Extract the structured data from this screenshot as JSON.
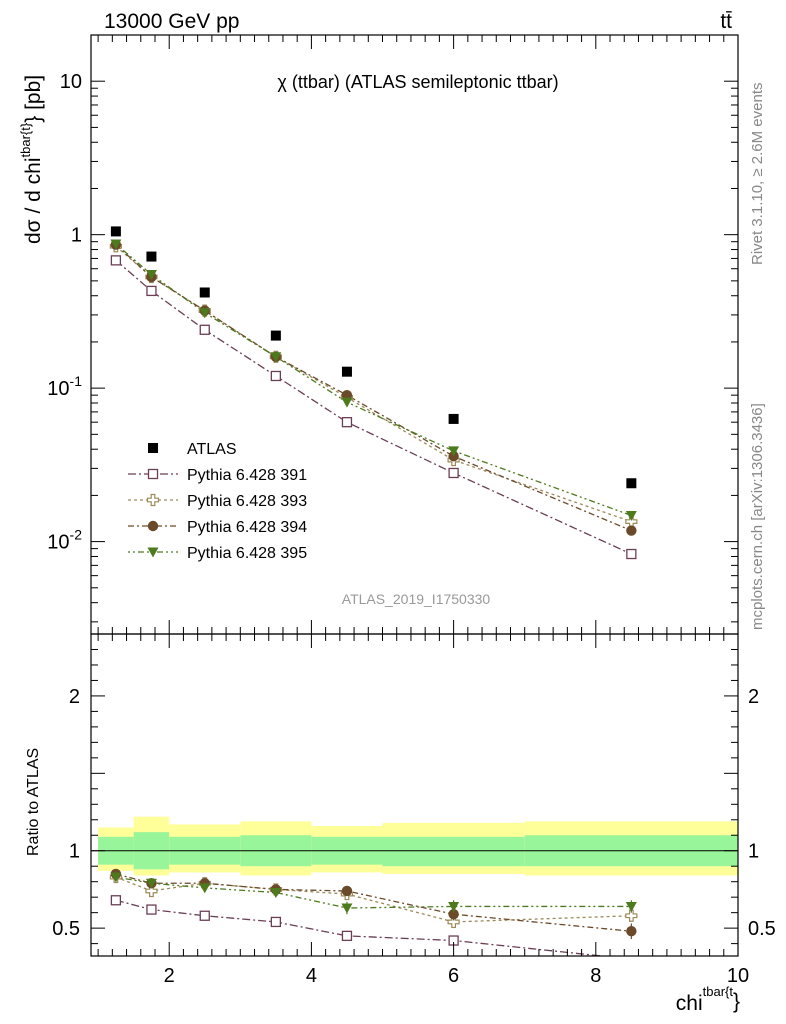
{
  "header": {
    "energy_label": "13000 GeV pp",
    "process_label": "tt̄"
  },
  "side": {
    "rivet_label": "Rivet 3.1.10, ≥ 2.6M events",
    "mcplots_label": "mcplots.cern.ch [arXiv:1306.3436]"
  },
  "chart_data": {
    "type": "scatter",
    "title": "χ (ttbar) (ATLAS semileptonic ttbar)",
    "watermark": "ATLAS_2019_I1750330",
    "x_label": "chi^{tbar{t}}",
    "x_label_parts": {
      "base": "chi",
      "sup": "tbar{t",
      "tail": "}"
    },
    "y_label": "dσ / d chi^{tbar{t}} [pb]",
    "y_label_parts": {
      "base": "dσ / d chi",
      "sup": "tbar{t}",
      "tail": "} [pb]"
    },
    "ratio_y_label": "Ratio to ATLAS",
    "x_range": [
      0.9,
      10.0
    ],
    "main_y_range": [
      0.0025,
      20
    ],
    "main_y_scale": "log",
    "ratio_y_range": [
      0.32,
      2.4
    ],
    "legend_position": "lower-left",
    "x_ticks": [
      "2",
      "4",
      "6",
      "8",
      "10"
    ],
    "main_y_ticks": [
      {
        "base": "10",
        "exp": "-2",
        "value": 0.01
      },
      {
        "base": "10",
        "exp": "-1",
        "value": 0.1
      },
      {
        "base": "1",
        "exp": "",
        "value": 1
      },
      {
        "base": "10",
        "exp": "",
        "value": 10
      }
    ],
    "ratio_y_ticks": [
      "0.5",
      "1",
      "2"
    ],
    "bins": [
      1.0,
      1.5,
      2.0,
      3.0,
      4.0,
      5.0,
      7.0,
      10.0
    ],
    "data": {
      "name": "ATLAS",
      "x": [
        1.25,
        1.75,
        2.5,
        3.5,
        4.5,
        6.0,
        8.5
      ],
      "y": [
        1.05,
        0.72,
        0.42,
        0.22,
        0.128,
        0.063,
        0.024
      ],
      "color": "#000000"
    },
    "band_inner": [
      [
        0.91,
        1.09
      ],
      [
        0.88,
        1.12
      ],
      [
        0.91,
        1.09
      ],
      [
        0.9,
        1.1
      ],
      [
        0.91,
        1.09
      ],
      [
        0.9,
        1.09
      ],
      [
        0.9,
        1.1
      ]
    ],
    "band_outer": [
      [
        0.87,
        1.15
      ],
      [
        0.84,
        1.22
      ],
      [
        0.86,
        1.17
      ],
      [
        0.84,
        1.19
      ],
      [
        0.86,
        1.16
      ],
      [
        0.85,
        1.18
      ],
      [
        0.84,
        1.19
      ]
    ],
    "band_inner_color": "#99f599",
    "band_outer_color": "#ffff99",
    "series": [
      {
        "name": "Pythia 6.428 391",
        "color": "#6b3e55",
        "marker": "open-square",
        "dash": "8,3,2,3",
        "x": [
          1.25,
          1.75,
          2.5,
          3.5,
          4.5,
          6.0,
          8.5
        ],
        "y": [
          0.68,
          0.43,
          0.24,
          0.12,
          0.06,
          0.028,
          0.0083
        ],
        "ratio": [
          0.68,
          0.62,
          0.58,
          0.54,
          0.45,
          0.42,
          0.3
        ],
        "ratio_err": [
          0.01,
          0.01,
          0.012,
          0.015,
          0.03,
          0.03,
          0.0
        ]
      },
      {
        "name": "Pythia 6.428 393",
        "color": "#9c8a5a",
        "marker": "open-cross",
        "dash": "3,3",
        "x": [
          1.25,
          1.75,
          2.5,
          3.5,
          4.5,
          6.0,
          8.5
        ],
        "y": [
          0.84,
          0.53,
          0.32,
          0.16,
          0.087,
          0.034,
          0.0135
        ],
        "ratio": [
          0.83,
          0.74,
          0.79,
          0.75,
          0.72,
          0.54,
          0.58
        ],
        "ratio_err": [
          0.02,
          0.02,
          0.015,
          0.02,
          0.03,
          0.04,
          0.04
        ]
      },
      {
        "name": "Pythia 6.428 394",
        "color": "#6b4a2a",
        "marker": "filled-circle",
        "dash": "6,3,2,3",
        "x": [
          1.25,
          1.75,
          2.5,
          3.5,
          4.5,
          6.0,
          8.5
        ],
        "y": [
          0.86,
          0.53,
          0.32,
          0.16,
          0.09,
          0.036,
          0.0118
        ],
        "ratio": [
          0.85,
          0.79,
          0.79,
          0.75,
          0.74,
          0.59,
          0.48
        ],
        "ratio_err": [
          0.02,
          0.02,
          0.015,
          0.02,
          0.03,
          0.04,
          0.05
        ]
      },
      {
        "name": "Pythia 6.428 395",
        "color": "#4e7a1e",
        "marker": "filled-triangle-down",
        "dash": "2,3,2,3,6,3",
        "x": [
          1.25,
          1.75,
          2.5,
          3.5,
          4.5,
          6.0,
          8.5
        ],
        "y": [
          0.87,
          0.55,
          0.31,
          0.16,
          0.081,
          0.039,
          0.0148
        ],
        "ratio": [
          0.83,
          0.79,
          0.76,
          0.73,
          0.63,
          0.64,
          0.64
        ],
        "ratio_err": [
          0.02,
          0.02,
          0.015,
          0.03,
          0.04,
          0.04,
          0.04
        ]
      }
    ]
  }
}
